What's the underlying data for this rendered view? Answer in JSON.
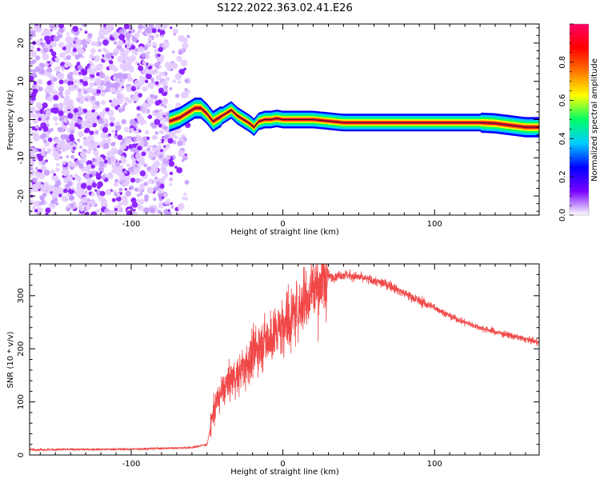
{
  "figure": {
    "title": "S122.2022.363.02.41.E26"
  },
  "chart_data": [
    {
      "type": "heatmap",
      "xlabel": "Height of straight line (km)",
      "ylabel": "Frequency (Hz)",
      "xlim": [
        -167,
        169
      ],
      "ylim": [
        -25,
        25
      ],
      "xticks": [
        -100,
        0,
        100
      ],
      "yticks": [
        -20,
        -10,
        0,
        10,
        20
      ],
      "colorbar": {
        "label": "Normalized spectral amplitude",
        "range": [
          0,
          1
        ],
        "ticks": [
          0.0,
          0.2,
          0.4,
          0.6,
          0.8
        ],
        "colormap": [
          "#ffffff",
          "#7700ff",
          "#0000ff",
          "#00ccff",
          "#00ff66",
          "#ffff00",
          "#ff7700",
          "#ff0000",
          "#ff0066"
        ]
      },
      "ridge": {
        "x": [
          -75,
          -68,
          -62,
          -58,
          -54,
          -50,
          -46,
          -42,
          -38,
          -34,
          -30,
          -26,
          -22,
          -19,
          -16,
          -12,
          -8,
          -4,
          0,
          10,
          20,
          40,
          60,
          80,
          90,
          100,
          110,
          120,
          130,
          140,
          150,
          160,
          169
        ],
        "y": [
          -0.5,
          0.5,
          2,
          3,
          3,
          1.5,
          -0.5,
          0.5,
          1.5,
          2.5,
          1,
          0,
          -1,
          -2,
          -0.5,
          0,
          0,
          0.3,
          0,
          0,
          0,
          -0.8,
          -0.8,
          -0.8,
          -0.8,
          -0.8,
          -0.8,
          -0.8,
          -0.8,
          -1,
          -1.5,
          -2,
          -2
        ]
      },
      "noise_region_x": [
        -167,
        -62
      ]
    },
    {
      "type": "line",
      "xlabel": "Height of straight line (km)",
      "ylabel": "SNR (10 * v/v)",
      "xlim": [
        -167,
        169
      ],
      "ylim": [
        0,
        360
      ],
      "xticks": [
        -100,
        0,
        100
      ],
      "yticks": [
        0,
        100,
        200,
        300
      ],
      "series_color": "#ee3333",
      "envelope": {
        "x": [
          -167,
          -100,
          -60,
          -50,
          -45,
          -40,
          -35,
          -30,
          -20,
          -10,
          0,
          10,
          20,
          30,
          40,
          50,
          60,
          70,
          80,
          90,
          100,
          110,
          120,
          130,
          140,
          150,
          160,
          169
        ],
        "y": [
          10,
          11,
          14,
          20,
          90,
          120,
          140,
          150,
          190,
          220,
          240,
          275,
          315,
          335,
          340,
          335,
          328,
          320,
          305,
          290,
          278,
          262,
          250,
          240,
          232,
          225,
          218,
          212
        ]
      }
    }
  ]
}
